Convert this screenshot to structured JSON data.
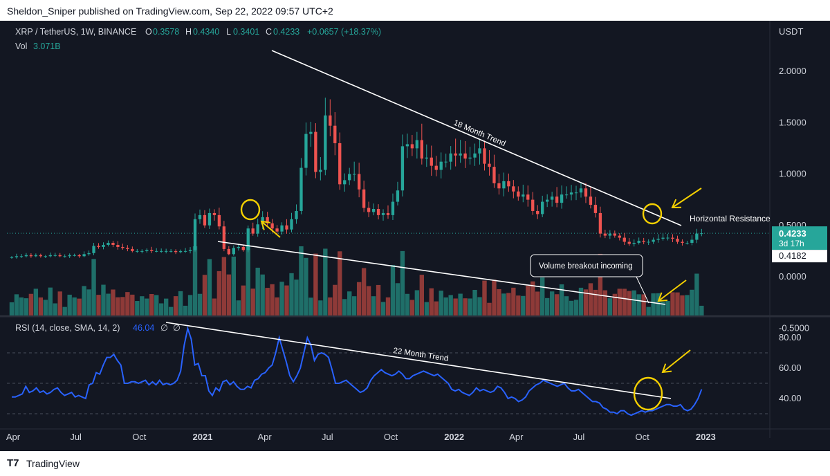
{
  "header": {
    "publisher_line": "Sheldon_Sniper published on TradingView.com, Sep 22, 2022 09:57 UTC+2"
  },
  "footer": {
    "brand": "TradingView",
    "logo_icon": "tradingview-logo-icon"
  },
  "legend": {
    "symbol": "XRP / TetherUS, 1W, BINANCE",
    "o_label": "O",
    "o_value": "0.3578",
    "h_label": "H",
    "h_value": "0.4340",
    "l_label": "L",
    "l_value": "0.3401",
    "c_label": "C",
    "c_value": "0.4233",
    "change": "+0.0657 (+18.37%)",
    "vol_label": "Vol",
    "vol_value": "3.071B",
    "rsi_label": "RSI (14, close, SMA, 14, 2)",
    "rsi_value": "46.04",
    "rsi_null1": "∅",
    "rsi_null2": "∅"
  },
  "colors": {
    "up": "#26a69a",
    "down": "#ef5350",
    "vol_up": "#1f6f69",
    "vol_down": "#8e3a38",
    "rsi": "#2962ff",
    "annotation": "#f5d000",
    "trendline": "#ffffff",
    "background": "#131722",
    "grid": "#2a2e39"
  },
  "chart_data": [
    {
      "type": "candlestick",
      "title": "XRP / TetherUS, 1W, BINANCE",
      "ylabel": "USDT",
      "y_ticks": [
        "2.0000",
        "1.5000",
        "1.0000",
        "0.5000",
        "0.0000",
        "-0.5000"
      ],
      "ylim": [
        -0.6,
        2.1
      ],
      "x_ticks": [
        "Apr",
        "Jul",
        "Oct",
        "2021",
        "Apr",
        "Jul",
        "Oct",
        "2022",
        "Apr",
        "Jul",
        "Oct",
        "2023"
      ],
      "x_tick_dates": [
        "2020-04-01",
        "2020-07-01",
        "2020-10-01",
        "2021-01-01",
        "2021-04-01",
        "2021-07-01",
        "2021-10-01",
        "2022-01-01",
        "2022-04-01",
        "2022-07-01",
        "2022-10-01",
        "2023-01-01"
      ],
      "price_labels": [
        "0.4233",
        "3d 17h",
        "0.4182"
      ],
      "closes": [
        0.19,
        0.2,
        0.2,
        0.21,
        0.2,
        0.21,
        0.2,
        0.2,
        0.21,
        0.21,
        0.2,
        0.2,
        0.21,
        0.21,
        0.2,
        0.22,
        0.23,
        0.3,
        0.29,
        0.31,
        0.33,
        0.31,
        0.29,
        0.28,
        0.27,
        0.25,
        0.25,
        0.25,
        0.26,
        0.25,
        0.25,
        0.25,
        0.25,
        0.25,
        0.24,
        0.25,
        0.25,
        0.26,
        0.56,
        0.6,
        0.5,
        0.62,
        0.6,
        0.49,
        0.27,
        0.22,
        0.28,
        0.29,
        0.26,
        0.47,
        0.42,
        0.51,
        0.58,
        0.52,
        0.47,
        0.44,
        0.5,
        0.46,
        0.56,
        0.64,
        1.06,
        1.39,
        1.41,
        1.02,
        1.04,
        1.57,
        1.47,
        1.3,
        0.9,
        0.94,
        1.0,
        1.0,
        0.85,
        0.67,
        0.63,
        0.66,
        0.6,
        0.62,
        0.6,
        0.73,
        0.84,
        1.27,
        1.29,
        1.25,
        1.33,
        1.15,
        1.16,
        1.08,
        1.04,
        1.12,
        1.12,
        1.2,
        1.18,
        1.2,
        1.15,
        1.16,
        1.2,
        1.25,
        1.1,
        1.07,
        0.91,
        0.86,
        0.93,
        0.88,
        0.83,
        0.78,
        0.8,
        0.75,
        0.64,
        0.61,
        0.73,
        0.75,
        0.78,
        0.72,
        0.8,
        0.8,
        0.82,
        0.82,
        0.86,
        0.78,
        0.7,
        0.62,
        0.42,
        0.4,
        0.42,
        0.4,
        0.38,
        0.34,
        0.32,
        0.33,
        0.35,
        0.34,
        0.34,
        0.36,
        0.37,
        0.38,
        0.38,
        0.37,
        0.34,
        0.33,
        0.33,
        0.36,
        0.42,
        0.4233
      ],
      "volume_label": "Vol",
      "volume_last": "3.071B"
    },
    {
      "type": "line",
      "title": "RSI (14, close, SMA, 14, 2)",
      "y_ticks": [
        "80.00",
        "60.00",
        "40.00"
      ],
      "ylim": [
        20,
        95
      ],
      "dashed_levels": [
        70,
        50,
        30
      ],
      "last_value": "46.04",
      "values": [
        41,
        41,
        42,
        43,
        48,
        44,
        45,
        47,
        44,
        45,
        43,
        44,
        46,
        47,
        44,
        42,
        43,
        44,
        41,
        42,
        41,
        40,
        49,
        50,
        57,
        56,
        62,
        67,
        67,
        69,
        65,
        62,
        50,
        50,
        51,
        51,
        50,
        51,
        52,
        49,
        51,
        49,
        52,
        49,
        50,
        49,
        50,
        52,
        58,
        75,
        86,
        79,
        62,
        63,
        55,
        55,
        45,
        42,
        47,
        45,
        51,
        52,
        49,
        51,
        48,
        46,
        46,
        48,
        47,
        52,
        53,
        56,
        57,
        60,
        62,
        70,
        80,
        72,
        64,
        55,
        51,
        55,
        60,
        70,
        80,
        75,
        65,
        69,
        70,
        69,
        67,
        59,
        50,
        50,
        51,
        52,
        50,
        48,
        46,
        44,
        45,
        47,
        52,
        55,
        57,
        59,
        57,
        56,
        55,
        56,
        58,
        56,
        53,
        53,
        55,
        56,
        57,
        58,
        57,
        56,
        55,
        56,
        54,
        52,
        50,
        46,
        45,
        46,
        44,
        43,
        42,
        44,
        47,
        45,
        46,
        45,
        44,
        45,
        48,
        47,
        44,
        40,
        41,
        40,
        38,
        39,
        41,
        45,
        47,
        49,
        50,
        52,
        51,
        50,
        49,
        48,
        49,
        50,
        47,
        45,
        45,
        46,
        44,
        42,
        40,
        38,
        38,
        37,
        34,
        33,
        31,
        31,
        30,
        32,
        32,
        30,
        29,
        30,
        31,
        32,
        31,
        32,
        32,
        33,
        34,
        35,
        36,
        36,
        35,
        35,
        36,
        33,
        32,
        33,
        36,
        40,
        46.04
      ]
    }
  ],
  "annotations": {
    "trend1": "18 Month Trend",
    "horizontal": "Horizontal Resistance",
    "volume_callout": "Volume breakout incoming",
    "trend2": "22 Month Trend"
  }
}
